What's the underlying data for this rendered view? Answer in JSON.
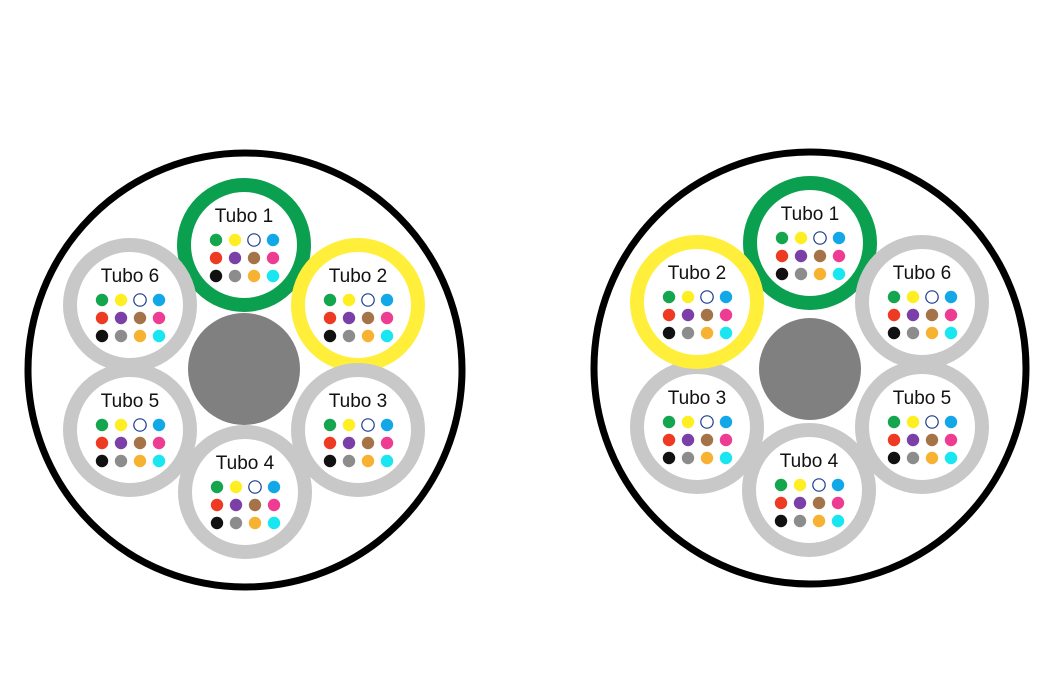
{
  "colors": {
    "cable_outline": "#000000",
    "cable_fill": "#ffffff",
    "strength_member": "#808080",
    "tube_default": "#c8c8c8",
    "tube_highlight_primary": "#0aa04f",
    "tube_highlight_secondary": "#ffef3a"
  },
  "fiber_colors": [
    "#14a54f",
    "#ffee22",
    "#ffffff",
    "#12a8e8",
    "#ee3a22",
    "#7b3fa8",
    "#a47448",
    "#ee3c92",
    "#111111",
    "#8c8c8c",
    "#f8b232",
    "#18e6f0"
  ],
  "fiber_names": [
    "green",
    "yellow",
    "white",
    "blue",
    "red",
    "violet",
    "brown",
    "pink",
    "black",
    "grey",
    "orange",
    "aqua"
  ],
  "cables": [
    {
      "name": "cable-left",
      "tubes": [
        {
          "label": "Tubo 1",
          "ring": "green"
        },
        {
          "label": "Tubo 2",
          "ring": "yellow"
        },
        {
          "label": "Tubo 3",
          "ring": "grey"
        },
        {
          "label": "Tubo 4",
          "ring": "grey"
        },
        {
          "label": "Tubo 5",
          "ring": "grey"
        },
        {
          "label": "Tubo 6",
          "ring": "grey"
        }
      ]
    },
    {
      "name": "cable-right",
      "tubes": [
        {
          "label": "Tubo 1",
          "ring": "green"
        },
        {
          "label": "Tubo 6",
          "ring": "grey"
        },
        {
          "label": "Tubo 5",
          "ring": "grey"
        },
        {
          "label": "Tubo 4",
          "ring": "grey"
        },
        {
          "label": "Tubo 3",
          "ring": "grey"
        },
        {
          "label": "Tubo 2",
          "ring": "yellow"
        }
      ]
    }
  ]
}
